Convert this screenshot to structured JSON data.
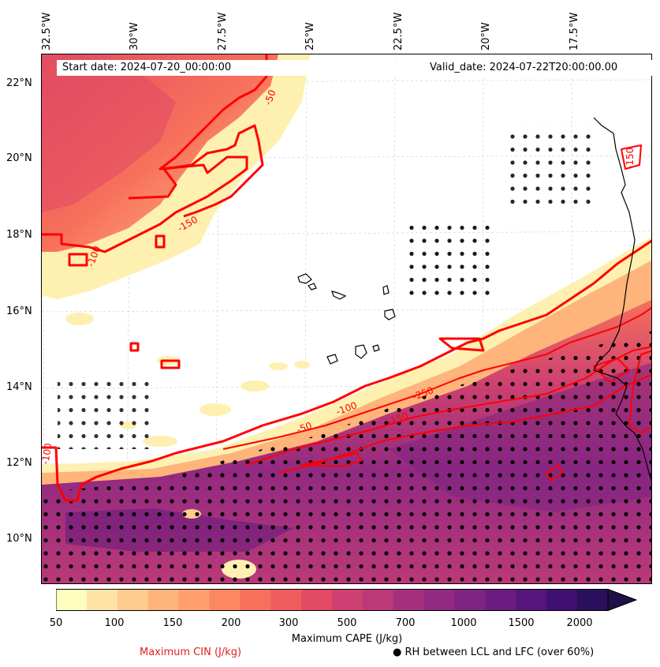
{
  "map": {
    "start_date": "Start date: 2024-07-20_00:00:00",
    "valid_date": "Valid_date: 2024-07-22T20:00:00.00",
    "lon_labels": [
      "32.5°W",
      "30°W",
      "27.5°W",
      "25°W",
      "22.5°W",
      "20°W",
      "17.5°W"
    ],
    "lat_labels": [
      "22°N",
      "20°N",
      "18°N",
      "16°N",
      "14°N",
      "12°N",
      "10°N"
    ],
    "contour_labels": [
      "-50",
      "-100",
      "-150",
      "-250",
      "-50",
      "-100",
      "-150",
      "-150",
      "-100"
    ]
  },
  "colorbar": {
    "title": "Maximum CAPE (J/kg)",
    "ticks": [
      "50",
      "100",
      "150",
      "200",
      "300",
      "500",
      "700",
      "1000",
      "1500",
      "2000"
    ],
    "colors": [
      "#fcfdbf",
      "#fde4a5",
      "#fecc8f",
      "#feb47b",
      "#fe9f6d",
      "#fb8861",
      "#f7705c",
      "#ef5d5e",
      "#e24b63",
      "#cd4071",
      "#bb3978",
      "#a5317e",
      "#922a81",
      "#7e2482",
      "#6a1c81",
      "#56147d",
      "#400f73",
      "#2a0f5c",
      "#1d1147"
    ]
  },
  "legend": {
    "cin": "Maximum CIN (J/kg)",
    "rh": "● RH between LCL and LFC (over 60%)"
  },
  "colors": {
    "cin_contour": "#ff0000",
    "coast": "#000000"
  }
}
